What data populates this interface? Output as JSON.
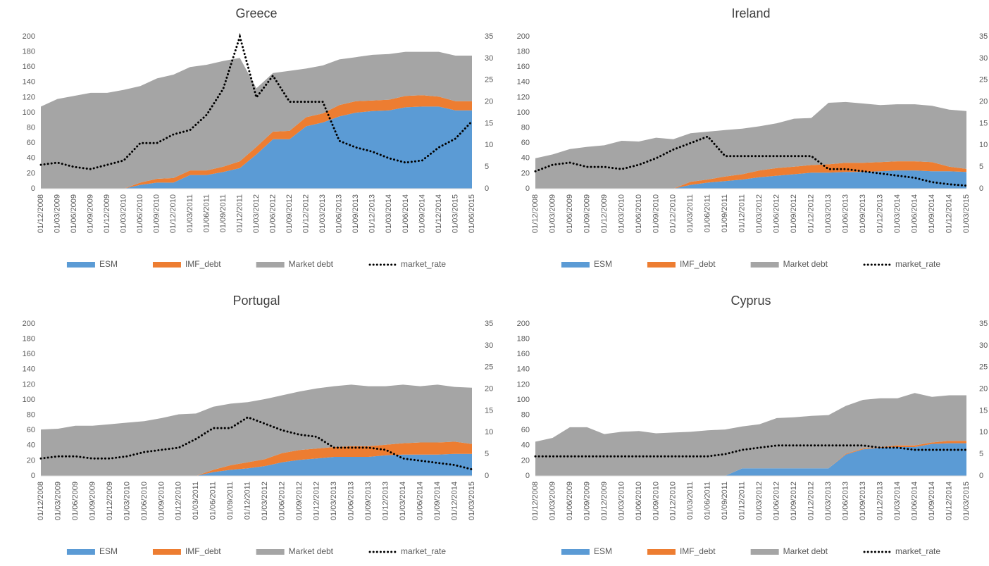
{
  "chart_data": [
    {
      "type": "area",
      "title": "Greece",
      "categories": [
        "01/12/2008",
        "01/03/2009",
        "01/06/2009",
        "01/09/2009",
        "01/12/2009",
        "01/03/2010",
        "01/06/2010",
        "01/09/2010",
        "01/12/2010",
        "01/03/2011",
        "01/06/2011",
        "01/09/2011",
        "01/12/2011",
        "01/03/2012",
        "01/06/2012",
        "01/09/2012",
        "01/12/2012",
        "01/03/2013",
        "01/06/2013",
        "01/09/2013",
        "01/12/2013",
        "01/03/2014",
        "01/06/2014",
        "01/09/2014",
        "01/12/2014",
        "01/03/2015",
        "01/06/2015"
      ],
      "series": [
        {
          "name": "ESM",
          "color": "#5b9bd5",
          "values": [
            0,
            0,
            0,
            0,
            0,
            0,
            5,
            8,
            8,
            18,
            18,
            22,
            27,
            45,
            65,
            65,
            82,
            87,
            95,
            100,
            102,
            103,
            107,
            108,
            108,
            103,
            103
          ]
        },
        {
          "name": "IMF_debt",
          "color": "#ed7d31",
          "values": [
            0,
            0,
            0,
            0,
            0,
            0,
            3,
            5,
            6,
            6,
            6,
            7,
            9,
            10,
            10,
            11,
            12,
            12,
            15,
            15,
            14,
            14,
            15,
            15,
            13,
            12,
            12
          ]
        },
        {
          "name": "Market debt",
          "color": "#a5a5a5",
          "values": [
            108,
            118,
            122,
            126,
            126,
            130,
            127,
            132,
            136,
            136,
            139,
            139,
            136,
            77,
            77,
            79,
            64,
            63,
            60,
            58,
            60,
            60,
            58,
            57,
            59,
            60,
            60
          ]
        },
        {
          "name": "market_rate",
          "type": "line",
          "axis": "y2",
          "color": "#000000",
          "values": [
            5.5,
            6,
            5,
            4.5,
            5.5,
            6.5,
            10.5,
            10.5,
            12.5,
            13.5,
            17,
            23,
            35,
            21,
            26,
            20,
            20,
            20,
            11,
            9.5,
            8.5,
            7,
            6,
            6.5,
            9.5,
            11.5,
            15.5
          ]
        }
      ],
      "ylim": [
        0,
        200
      ],
      "yticks": [
        0,
        20,
        40,
        60,
        80,
        100,
        120,
        140,
        160,
        180,
        200
      ],
      "y2lim": [
        0,
        35
      ],
      "y2ticks": [
        0,
        5,
        10,
        15,
        20,
        25,
        30,
        35
      ]
    },
    {
      "type": "area",
      "title": "Ireland",
      "categories": [
        "01/12/2008",
        "01/03/2009",
        "01/06/2009",
        "01/09/2009",
        "01/12/2009",
        "01/03/2010",
        "01/06/2010",
        "01/09/2010",
        "01/12/2010",
        "01/03/2011",
        "01/06/2011",
        "01/09/2011",
        "01/12/2011",
        "01/03/2012",
        "01/06/2012",
        "01/09/2012",
        "01/12/2012",
        "01/03/2013",
        "01/06/2013",
        "01/09/2013",
        "01/12/2013",
        "01/03/2014",
        "01/06/2014",
        "01/09/2014",
        "01/12/2014",
        "01/03/2015"
      ],
      "series": [
        {
          "name": "ESM",
          "color": "#5b9bd5",
          "values": [
            0,
            0,
            0,
            0,
            0,
            0,
            0,
            0,
            0,
            5,
            8,
            10,
            12,
            15,
            17,
            19,
            21,
            21,
            22,
            22,
            23,
            24,
            24,
            23,
            23,
            22
          ]
        },
        {
          "name": "IMF_debt",
          "color": "#ed7d31",
          "values": [
            0,
            0,
            0,
            0,
            0,
            0,
            0,
            0,
            0,
            4,
            4,
            6,
            7,
            9,
            10,
            10,
            10,
            11,
            12,
            12,
            12,
            12,
            12,
            12,
            6,
            4
          ]
        },
        {
          "name": "Market debt",
          "color": "#a5a5a5",
          "values": [
            40,
            45,
            52,
            55,
            57,
            63,
            62,
            67,
            65,
            64,
            63,
            61,
            60,
            58,
            59,
            63,
            62,
            81,
            80,
            78,
            75,
            75,
            75,
            74,
            75,
            76
          ]
        },
        {
          "name": "market_rate",
          "type": "line",
          "axis": "y2",
          "color": "#000000",
          "values": [
            4,
            5.5,
            6,
            5,
            5,
            4.5,
            5.5,
            7,
            9,
            10.5,
            12,
            7.5,
            7.5,
            7.5,
            7.5,
            7.5,
            7.5,
            4.5,
            4.5,
            4,
            3.5,
            3,
            2.5,
            1.5,
            1,
            0.7
          ]
        }
      ],
      "ylim": [
        0,
        200
      ],
      "yticks": [
        0,
        20,
        40,
        60,
        80,
        100,
        120,
        140,
        160,
        180,
        200
      ],
      "y2lim": [
        0,
        35
      ],
      "y2ticks": [
        0,
        5,
        10,
        15,
        20,
        25,
        30,
        35
      ]
    },
    {
      "type": "area",
      "title": "Portugal",
      "categories": [
        "01/12/2008",
        "01/03/2009",
        "01/06/2009",
        "01/09/2009",
        "01/12/2009",
        "01/03/2010",
        "01/06/2010",
        "01/09/2010",
        "01/12/2010",
        "01/03/2011",
        "01/06/2011",
        "01/09/2011",
        "01/12/2011",
        "01/03/2012",
        "01/06/2012",
        "01/09/2012",
        "01/12/2012",
        "01/03/2013",
        "01/06/2013",
        "01/09/2013",
        "01/12/2013",
        "01/03/2014",
        "01/06/2014",
        "01/09/2014",
        "01/12/2014",
        "01/03/2015"
      ],
      "series": [
        {
          "name": "ESM",
          "color": "#5b9bd5",
          "values": [
            0,
            0,
            0,
            0,
            0,
            0,
            0,
            0,
            0,
            0,
            5,
            8,
            10,
            13,
            18,
            21,
            23,
            25,
            25,
            25,
            27,
            28,
            28,
            28,
            29,
            29
          ]
        },
        {
          "name": "IMF_debt",
          "color": "#ed7d31",
          "values": [
            0,
            0,
            0,
            0,
            0,
            0,
            0,
            0,
            0,
            0,
            3,
            6,
            8,
            9,
            12,
            13,
            13,
            13,
            14,
            14,
            14,
            15,
            16,
            16,
            16,
            13
          ]
        },
        {
          "name": "Market debt",
          "color": "#a5a5a5",
          "values": [
            61,
            62,
            66,
            66,
            68,
            70,
            72,
            76,
            81,
            82,
            83,
            81,
            79,
            79,
            76,
            77,
            79,
            80,
            81,
            79,
            77,
            77,
            74,
            76,
            72,
            74
          ]
        },
        {
          "name": "market_rate",
          "type": "line",
          "axis": "y2",
          "color": "#000000",
          "values": [
            4,
            4.5,
            4.5,
            4,
            4,
            4.5,
            5.5,
            6,
            6.5,
            8.5,
            11,
            11,
            13.5,
            12,
            10.5,
            9.5,
            9,
            6.5,
            6.5,
            6.5,
            6,
            4,
            3.5,
            3,
            2.5,
            1.5
          ]
        }
      ],
      "ylim": [
        0,
        200
      ],
      "yticks": [
        0,
        20,
        40,
        60,
        80,
        100,
        120,
        140,
        160,
        180,
        200
      ],
      "y2lim": [
        0,
        35
      ],
      "y2ticks": [
        0,
        5,
        10,
        15,
        20,
        25,
        30,
        35
      ]
    },
    {
      "type": "area",
      "title": "Cyprus",
      "categories": [
        "01/12/2008",
        "01/03/2009",
        "01/06/2009",
        "01/09/2009",
        "01/12/2009",
        "01/03/2010",
        "01/06/2010",
        "01/09/2010",
        "01/12/2010",
        "01/03/2011",
        "01/06/2011",
        "01/09/2011",
        "01/12/2011",
        "01/03/2012",
        "01/06/2012",
        "01/09/2012",
        "01/12/2012",
        "01/03/2013",
        "01/06/2013",
        "01/09/2013",
        "01/12/2013",
        "01/03/2014",
        "01/06/2014",
        "01/09/2014",
        "01/12/2014",
        "01/03/2015"
      ],
      "series": [
        {
          "name": "ESM",
          "color": "#5b9bd5",
          "values": [
            0,
            0,
            0,
            0,
            0,
            0,
            0,
            0,
            0,
            0,
            0,
            0,
            10,
            10,
            10,
            10,
            10,
            10,
            28,
            35,
            37,
            38,
            38,
            42,
            43,
            43
          ]
        },
        {
          "name": "IMF_debt",
          "color": "#ed7d31",
          "values": [
            0,
            0,
            0,
            0,
            0,
            0,
            0,
            0,
            0,
            0,
            0,
            0,
            0,
            0,
            0,
            0,
            0,
            0,
            1,
            1,
            1,
            2,
            2,
            2,
            3,
            3
          ]
        },
        {
          "name": "Market debt",
          "color": "#a5a5a5",
          "values": [
            45,
            50,
            64,
            64,
            55,
            58,
            59,
            56,
            57,
            58,
            60,
            61,
            55,
            58,
            66,
            67,
            69,
            70,
            63,
            64,
            64,
            62,
            69,
            60,
            60,
            60
          ]
        },
        {
          "name": "market_rate",
          "type": "line",
          "axis": "y2",
          "color": "#000000",
          "values": [
            4.5,
            4.5,
            4.5,
            4.5,
            4.5,
            4.5,
            4.5,
            4.5,
            4.5,
            4.5,
            4.5,
            5,
            6,
            6.5,
            7,
            7,
            7,
            7,
            7,
            7,
            6.5,
            6.5,
            6,
            6,
            6,
            6
          ]
        }
      ],
      "ylim": [
        0,
        200
      ],
      "yticks": [
        0,
        20,
        40,
        60,
        80,
        100,
        120,
        140,
        160,
        180,
        200
      ],
      "y2lim": [
        0,
        35
      ],
      "y2ticks": [
        0,
        5,
        10,
        15,
        20,
        25,
        30,
        35
      ]
    }
  ]
}
